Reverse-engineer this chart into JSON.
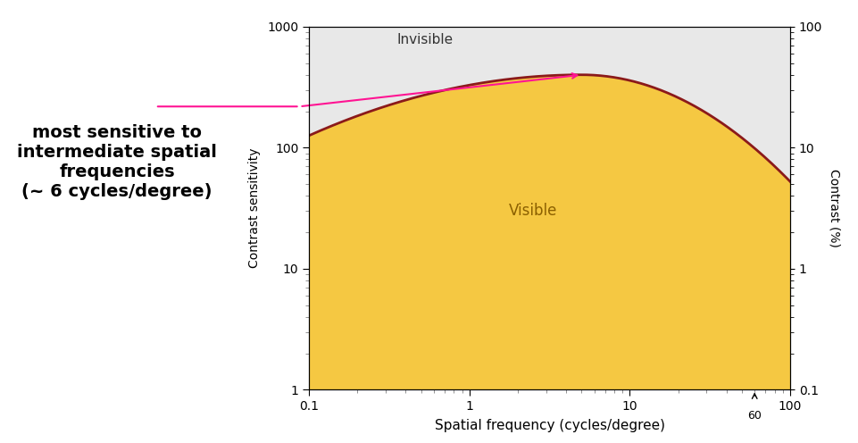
{
  "xlim": [
    0.1,
    100
  ],
  "ylim": [
    1,
    1000
  ],
  "xlabel": "Spatial frequency (cycles/degree)",
  "ylabel": "Contrast sensitivity",
  "ylabel_right": "Contrast (%)",
  "background_color": "#e8e8e8",
  "fill_color": "#F5C842",
  "line_color": "#8B1A1A",
  "invisible_label": "Invisible",
  "visible_label": "Visible",
  "annotation_text": "most sensitive to\nintermediate spatial\nfrequencies\n(~ 6 cycles/degree)",
  "arrow_color": "#FF1493",
  "tick_60_label": "60",
  "left_panel_bg": "#ffffff"
}
